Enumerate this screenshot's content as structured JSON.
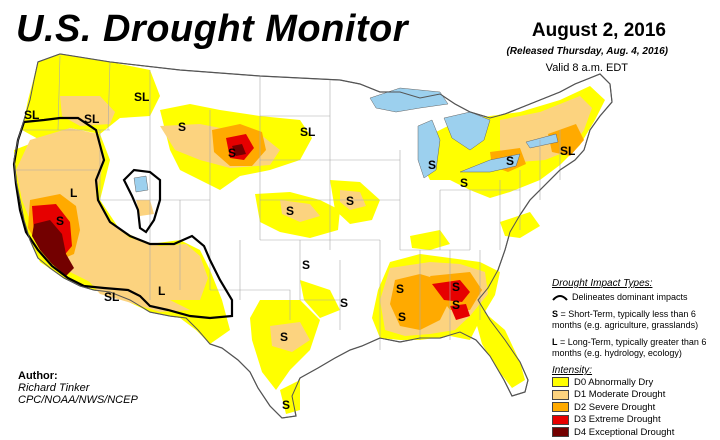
{
  "title": "U.S. Drought Monitor",
  "date": "August 2, 2016",
  "released": "(Released Thursday, Aug. 4, 2016)",
  "valid": "Valid 8 a.m. EDT",
  "impact": {
    "header": "Drought Impact Types:",
    "boundary_text": "Delineates dominant impacts",
    "short_key": "S",
    "short_text": "= Short-Term, typically less than 6 months (e.g. agriculture, grasslands)",
    "long_key": "L",
    "long_text": "= Long-Term, typically greater than 6 months (e.g. hydrology, ecology)"
  },
  "intensity": {
    "header": "Intensity:",
    "levels": [
      {
        "label": "D0 Abnormally Dry",
        "color": "#ffff00"
      },
      {
        "label": "D1 Moderate Drought",
        "color": "#fcd37f"
      },
      {
        "label": "D2 Severe Drought",
        "color": "#ffaa00"
      },
      {
        "label": "D3 Extreme Drought",
        "color": "#e60000"
      },
      {
        "label": "D4 Exceptional Drought",
        "color": "#730000"
      }
    ]
  },
  "author": {
    "label": "Author:",
    "name": "Richard Tinker",
    "org": "CPC/NOAA/NWS/NCEP"
  },
  "map_labels": {
    "sl_nw": "SL",
    "sl_or": "SL",
    "sl_mt": "SL",
    "s_mt": "S",
    "s_sd": "S",
    "sl_nd": "SL",
    "l_nv": "L",
    "s_ca": "S",
    "sl_az": "SL",
    "l_nm": "L",
    "s_ks": "S",
    "s_ia": "S",
    "s_mo": "S",
    "s_ok": "S",
    "s_tx": "S",
    "s_tx2": "S",
    "s_ar": "S",
    "s_ms": "S",
    "s_al": "S",
    "s_ga": "S",
    "s_mi": "S",
    "s_oh": "S",
    "s_pa": "S",
    "sl_ne": "SL"
  },
  "colors": {
    "water": "#9cd0ee",
    "border": "#999999",
    "outline": "#555555",
    "impact_line": "#000000"
  }
}
